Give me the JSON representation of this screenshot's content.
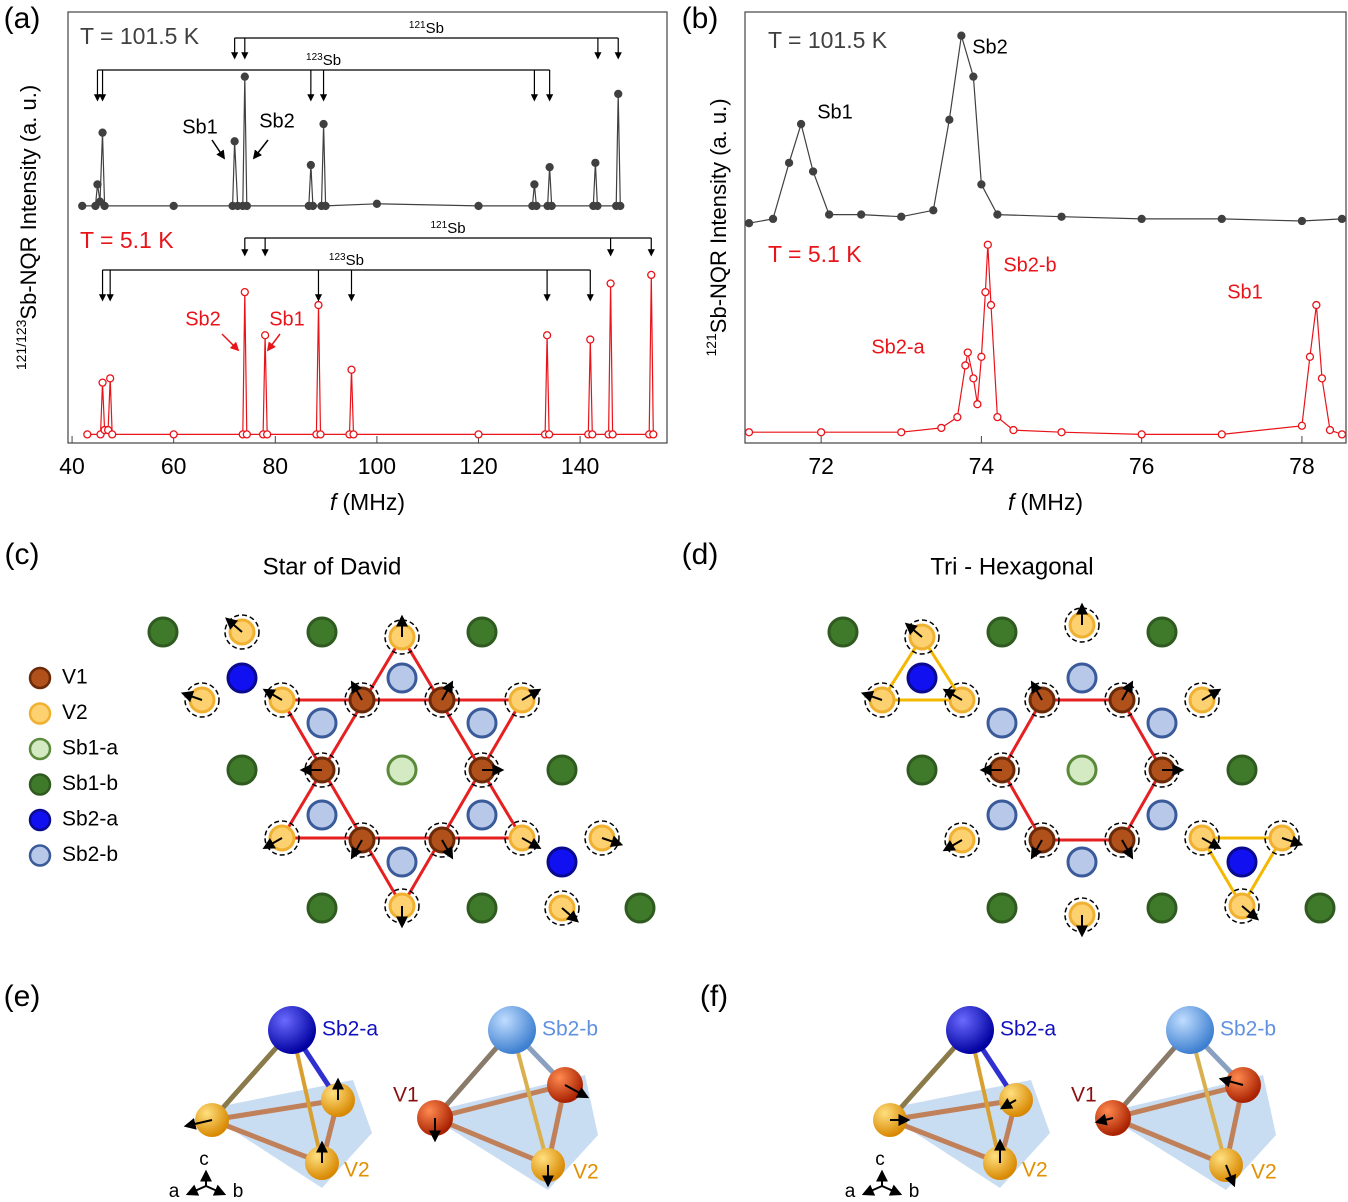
{
  "chart_data": [
    {
      "type": "line",
      "panel_label": "(a)",
      "xlabel_italic": "f",
      "xlabel": "(MHz)",
      "ylabel_sup": "121/123",
      "ylabel": "Sb-NQR Intensity (a. u.)",
      "xlim": [
        39.2,
        157.1
      ],
      "xticks": [
        40,
        60,
        80,
        100,
        120,
        140
      ],
      "ylim": [
        0,
        10
      ],
      "series": [
        {
          "name": "T = 101.5 K",
          "color": "#404040",
          "marker": "filled",
          "x": [
            42,
            44.6,
            45,
            45.5,
            46,
            46.4,
            60,
            71.6,
            72,
            72.6,
            73.6,
            74,
            74.4,
            86.6,
            87,
            87.4,
            89.1,
            89.5,
            89.9,
            100,
            120,
            130.6,
            131,
            131.4,
            133.6,
            134,
            134.4,
            142.6,
            143,
            143.4,
            147.1,
            147.5,
            147.9
          ],
          "values": [
            5.5,
            5.5,
            6.0,
            5.6,
            7.2,
            5.5,
            5.5,
            5.5,
            7.0,
            5.5,
            5.5,
            8.5,
            5.5,
            5.5,
            6.45,
            5.5,
            5.5,
            7.4,
            5.5,
            5.55,
            5.5,
            5.5,
            6.0,
            5.5,
            5.5,
            6.4,
            5.5,
            5.5,
            6.5,
            5.5,
            5.5,
            8.1,
            5.5
          ]
        },
        {
          "name": "T = 5.1 K",
          "color": "#e8141a",
          "marker": "open",
          "x": [
            43,
            45.6,
            46,
            46.4,
            47.1,
            47.5,
            47.9,
            60,
            73.6,
            74,
            74.4,
            77.6,
            78,
            78.4,
            88.1,
            88.5,
            88.9,
            94.6,
            95,
            95.4,
            120,
            133.1,
            133.5,
            133.9,
            141.6,
            142,
            142.4,
            145.6,
            146,
            146.4,
            153.6,
            154,
            154.4
          ],
          "values": [
            0.2,
            0.2,
            1.4,
            0.3,
            0.3,
            1.5,
            0.2,
            0.2,
            0.2,
            3.5,
            0.2,
            0.2,
            2.5,
            0.2,
            0.2,
            3.2,
            0.2,
            0.2,
            1.7,
            0.2,
            0.2,
            0.2,
            2.5,
            0.2,
            0.2,
            2.4,
            0.2,
            0.2,
            3.7,
            0.2,
            0.2,
            3.9,
            0.2
          ]
        }
      ],
      "brackets": [
        {
          "mass": "121",
          "symbol": "Sb",
          "x": [
            72,
            74,
            143.5,
            147.5
          ]
        },
        {
          "mass": "123",
          "symbol": "Sb",
          "x": [
            45,
            46,
            87,
            89.5,
            131,
            134
          ]
        },
        {
          "mass": "121",
          "symbol": "Sb",
          "x": [
            74,
            78,
            146,
            154
          ]
        },
        {
          "mass": "123",
          "symbol": "Sb",
          "x": [
            46,
            47.5,
            88.5,
            95,
            133.5,
            142
          ]
        }
      ],
      "annotations": [
        "Sb1",
        "Sb2",
        "Sb2",
        "Sb1"
      ]
    },
    {
      "type": "line",
      "panel_label": "(b)",
      "xlabel_italic": "f",
      "xlabel": "(MHz)",
      "ylabel_sup": "121",
      "ylabel": "Sb-NQR Intensity (a. u.)",
      "xlim": [
        71.05,
        78.55
      ],
      "xticks": [
        72,
        74,
        76,
        78
      ],
      "ylim": [
        0,
        10
      ],
      "series": [
        {
          "name": "T = 101.5 K",
          "color": "#404040",
          "marker": "filled",
          "x": [
            71.1,
            71.4,
            71.6,
            71.75,
            71.9,
            72.1,
            72.5,
            73.0,
            73.4,
            73.6,
            73.75,
            73.9,
            74.0,
            74.2,
            75,
            76,
            77,
            78,
            78.5
          ],
          "values": [
            5.1,
            5.2,
            6.5,
            7.4,
            6.3,
            5.3,
            5.3,
            5.25,
            5.4,
            7.5,
            9.45,
            8.5,
            6.0,
            5.3,
            5.25,
            5.2,
            5.2,
            5.15,
            5.2
          ]
        },
        {
          "name": "T = 5.1 K",
          "color": "#e8141a",
          "marker": "open",
          "x": [
            71.1,
            72,
            73,
            73.5,
            73.7,
            73.8,
            73.83,
            73.9,
            73.95,
            74.0,
            74.05,
            74.08,
            74.12,
            74.2,
            74.4,
            75,
            76,
            77,
            78.0,
            78.1,
            78.18,
            78.25,
            78.35,
            78.5
          ],
          "values": [
            0.25,
            0.25,
            0.25,
            0.35,
            0.6,
            1.8,
            2.1,
            1.5,
            0.9,
            2.0,
            3.5,
            4.6,
            3.2,
            0.6,
            0.3,
            0.25,
            0.2,
            0.2,
            0.4,
            2.0,
            3.2,
            1.5,
            0.3,
            0.2
          ]
        }
      ],
      "annotations": [
        "Sb1",
        "Sb2",
        "Sb2-b",
        "Sb2-a",
        "Sb1"
      ]
    }
  ],
  "panel_c": {
    "label": "(c)",
    "title": "Star of David",
    "legend": [
      "V1",
      "V2",
      "Sb1-a",
      "Sb1-b",
      "Sb2-a",
      "Sb2-b"
    ]
  },
  "panel_d": {
    "label": "(d)",
    "title": "Tri - Hexagonal"
  },
  "panel_e": {
    "label": "(e)",
    "labels": [
      "Sb2-a",
      "V2",
      "Sb2-b",
      "V1",
      "V2"
    ],
    "axes": [
      "c",
      "a",
      "b"
    ]
  },
  "panel_f": {
    "label": "(f)",
    "labels": [
      "Sb2-a",
      "V2",
      "Sb2-b",
      "V1",
      "V2"
    ],
    "axes": [
      "c",
      "a",
      "b"
    ]
  }
}
